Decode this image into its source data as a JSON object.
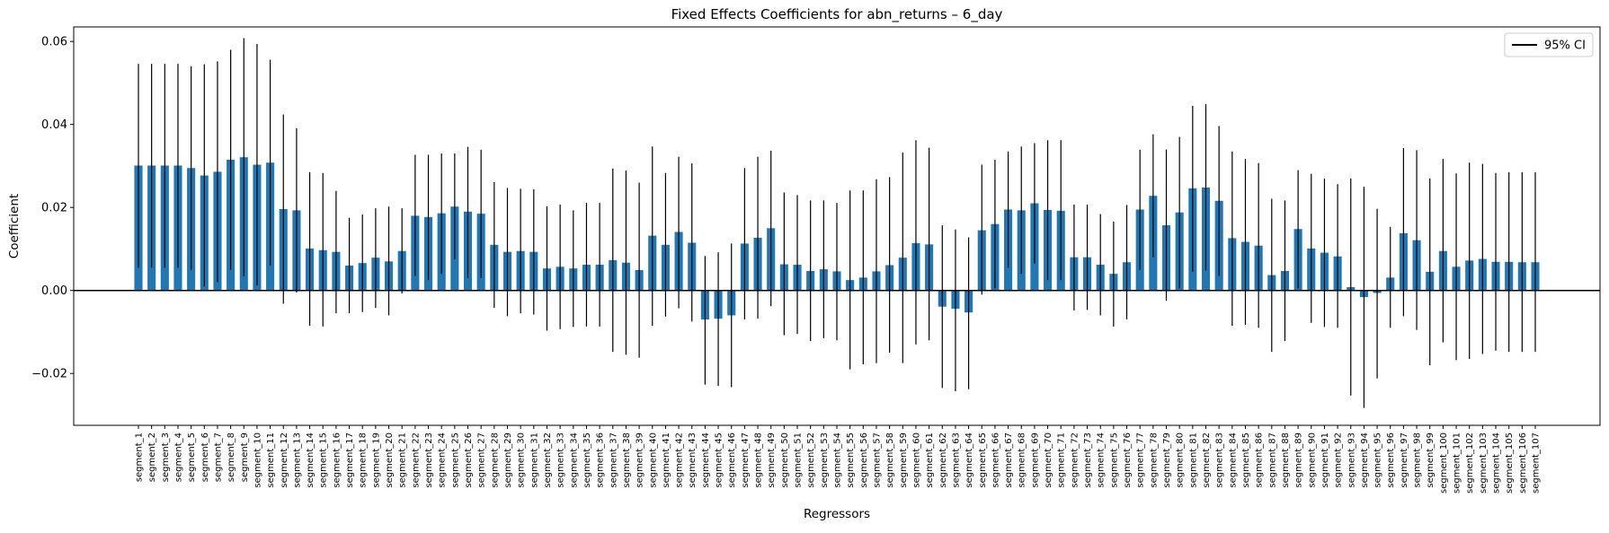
{
  "colors": {
    "bar": "#1f77b4",
    "errorbar": "#000000",
    "zero_line": "#000000"
  },
  "chart_data": {
    "type": "bar",
    "title": "Fixed Effects Coefficients for abn_returns – 6_day",
    "xlabel": "Regressors",
    "ylabel": "Coefficient",
    "ylim": [
      -0.0325,
      0.0635
    ],
    "yticks": [
      -0.02,
      0.0,
      0.02,
      0.04,
      0.06
    ],
    "ytick_labels": [
      "−0.02",
      "0.00",
      "0.02",
      "0.04",
      "0.06"
    ],
    "grid": false,
    "legend": {
      "placement": "top-right",
      "entries": [
        "95% CI"
      ]
    },
    "zero_line": 0,
    "categories": [
      "segment_1",
      "segment_2",
      "segment_3",
      "segment_4",
      "segment_5",
      "segment_6",
      "segment_7",
      "segment_8",
      "segment_9",
      "segment_10",
      "segment_11",
      "segment_12",
      "segment_13",
      "segment_14",
      "segment_15",
      "segment_16",
      "segment_17",
      "segment_18",
      "segment_19",
      "segment_20",
      "segment_21",
      "segment_22",
      "segment_23",
      "segment_24",
      "segment_25",
      "segment_26",
      "segment_27",
      "segment_28",
      "segment_29",
      "segment_30",
      "segment_31",
      "segment_32",
      "segment_33",
      "segment_34",
      "segment_35",
      "segment_36",
      "segment_37",
      "segment_38",
      "segment_39",
      "segment_40",
      "segment_41",
      "segment_42",
      "segment_43",
      "segment_44",
      "segment_45",
      "segment_46",
      "segment_47",
      "segment_48",
      "segment_49",
      "segment_50",
      "segment_51",
      "segment_52",
      "segment_53",
      "segment_54",
      "segment_55",
      "segment_56",
      "segment_57",
      "segment_58",
      "segment_59",
      "segment_60",
      "segment_61",
      "segment_62",
      "segment_63",
      "segment_64",
      "segment_65",
      "segment_66",
      "segment_67",
      "segment_68",
      "segment_69",
      "segment_70",
      "segment_71",
      "segment_72",
      "segment_73",
      "segment_74",
      "segment_75",
      "segment_76",
      "segment_77",
      "segment_78",
      "segment_79",
      "segment_80",
      "segment_81",
      "segment_82",
      "segment_83",
      "segment_84",
      "segment_85",
      "segment_86",
      "segment_87",
      "segment_88",
      "segment_89",
      "segment_90",
      "segment_91",
      "segment_92",
      "segment_93",
      "segment_94",
      "segment_95",
      "segment_96",
      "segment_97",
      "segment_98",
      "segment_99",
      "segment_100",
      "segment_101",
      "segment_102",
      "segment_103",
      "segment_104",
      "segment_105",
      "segment_106",
      "segment_107"
    ],
    "values": [
      0.0301,
      0.0301,
      0.0301,
      0.0301,
      0.0295,
      0.0277,
      0.0286,
      0.0315,
      0.0321,
      0.0303,
      0.0308,
      0.0196,
      0.0193,
      0.0101,
      0.0097,
      0.0093,
      0.006,
      0.0066,
      0.0079,
      0.007,
      0.0095,
      0.018,
      0.0177,
      0.0186,
      0.0202,
      0.019,
      0.0185,
      0.011,
      0.0093,
      0.0095,
      0.0093,
      0.0053,
      0.0057,
      0.0053,
      0.0062,
      0.0062,
      0.0073,
      0.0067,
      0.0049,
      0.0132,
      0.011,
      0.0141,
      0.0115,
      -0.007,
      -0.0068,
      -0.006,
      0.0113,
      0.0127,
      0.015,
      0.0063,
      0.0062,
      0.0047,
      0.0051,
      0.0046,
      0.0025,
      0.0031,
      0.0046,
      0.0061,
      0.0079,
      0.0114,
      0.0111,
      -0.0039,
      -0.0044,
      -0.0053,
      0.0145,
      0.016,
      0.0195,
      0.0193,
      0.021,
      0.0194,
      0.0192,
      0.008,
      0.008,
      0.0062,
      0.004,
      0.0068,
      0.0195,
      0.0228,
      0.0157,
      0.0188,
      0.0246,
      0.0248,
      0.0216,
      0.0126,
      0.0117,
      0.0108,
      0.0037,
      0.0047,
      0.0148,
      0.0101,
      0.0091,
      0.0082,
      0.0008,
      -0.0016,
      -0.0006,
      0.0031,
      0.0138,
      0.0121,
      0.0045,
      0.0095,
      0.0057,
      0.0072,
      0.0076,
      0.0069,
      0.0069,
      0.0068,
      0.0068
    ],
    "ci_low": [
      0.0055,
      0.0055,
      0.0055,
      0.0055,
      0.005,
      0.001,
      0.002,
      0.005,
      0.0034,
      0.0012,
      0.006,
      -0.0032,
      -0.0005,
      -0.0085,
      -0.0087,
      -0.0055,
      -0.0055,
      -0.0052,
      -0.0042,
      -0.006,
      -0.0007,
      0.0035,
      0.0025,
      0.004,
      0.0075,
      0.003,
      0.003,
      -0.0042,
      -0.0062,
      -0.0055,
      -0.0058,
      -0.0097,
      -0.0093,
      -0.0088,
      -0.0087,
      -0.0087,
      -0.0148,
      -0.0155,
      -0.0162,
      -0.0085,
      -0.0063,
      -0.0043,
      -0.0075,
      -0.0227,
      -0.023,
      -0.0233,
      -0.007,
      -0.0068,
      -0.0038,
      -0.0108,
      -0.0105,
      -0.0122,
      -0.0115,
      -0.012,
      -0.019,
      -0.0178,
      -0.0175,
      -0.015,
      -0.0175,
      -0.013,
      -0.012,
      -0.0235,
      -0.0243,
      -0.0238,
      -0.001,
      0.0005,
      0.0055,
      0.004,
      0.0065,
      0.0025,
      0.0025,
      -0.0048,
      -0.0047,
      -0.006,
      -0.0087,
      -0.007,
      0.005,
      0.008,
      -0.0025,
      0.0005,
      0.0045,
      0.0048,
      0.0035,
      -0.0085,
      -0.0083,
      -0.009,
      -0.0148,
      -0.0122,
      0.0005,
      -0.0078,
      -0.0088,
      -0.009,
      -0.0253,
      -0.0283,
      -0.0212,
      -0.009,
      -0.0062,
      -0.0095,
      -0.018,
      -0.0125,
      -0.0168,
      -0.0165,
      -0.0153,
      -0.0145,
      -0.0148,
      -0.0148,
      -0.0148
    ],
    "ci_high": [
      0.0546,
      0.0546,
      0.0546,
      0.0546,
      0.054,
      0.0545,
      0.0552,
      0.058,
      0.0608,
      0.0594,
      0.0556,
      0.0424,
      0.0391,
      0.0285,
      0.0283,
      0.024,
      0.0175,
      0.0183,
      0.0198,
      0.0202,
      0.0198,
      0.0327,
      0.0327,
      0.033,
      0.033,
      0.0346,
      0.0339,
      0.0261,
      0.0247,
      0.0245,
      0.0244,
      0.0203,
      0.0207,
      0.0193,
      0.0211,
      0.0211,
      0.0294,
      0.0289,
      0.026,
      0.0347,
      0.0283,
      0.0322,
      0.0306,
      0.0083,
      0.0092,
      0.0113,
      0.0295,
      0.0322,
      0.0337,
      0.0236,
      0.023,
      0.0217,
      0.0217,
      0.0211,
      0.0241,
      0.0241,
      0.0268,
      0.0273,
      0.0332,
      0.0362,
      0.0344,
      0.0157,
      0.0147,
      0.0128,
      0.0303,
      0.0315,
      0.0335,
      0.0347,
      0.0355,
      0.0362,
      0.0362,
      0.0207,
      0.0207,
      0.0184,
      0.0166,
      0.0206,
      0.0339,
      0.0376,
      0.034,
      0.037,
      0.0445,
      0.0449,
      0.0396,
      0.0335,
      0.0317,
      0.0307,
      0.0221,
      0.0217,
      0.029,
      0.0281,
      0.027,
      0.0256,
      0.027,
      0.025,
      0.0197,
      0.0153,
      0.0343,
      0.0338,
      0.027,
      0.0317,
      0.0282,
      0.0308,
      0.0305,
      0.0283,
      0.0285,
      0.0285,
      0.0285
    ]
  }
}
